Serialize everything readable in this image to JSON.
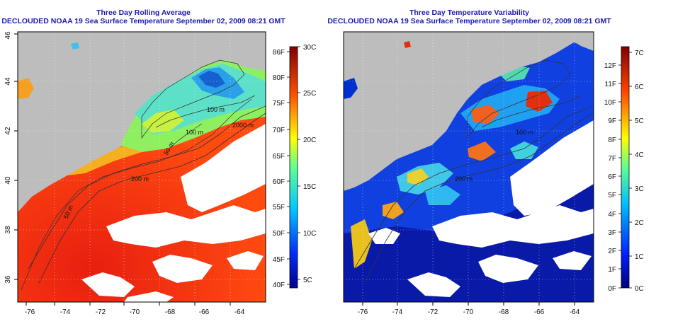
{
  "left_panel": {
    "title_line1": "Three Day Rolling Average",
    "title_line2": "DECLOUDED NOAA 19 Sea Surface Temperature September 02, 2009 08:21 GMT",
    "colorbar_f_labels": [
      "86F",
      "80F",
      "75F",
      "70F",
      "65F",
      "60F",
      "55F",
      "50F",
      "45F",
      "40F"
    ],
    "colorbar_c_labels": [
      "30C",
      "25C",
      "20C",
      "15C",
      "10C",
      "5C"
    ],
    "contour_labels": [
      "100 m",
      "100 m",
      "2000 m",
      "200 m",
      "50 m",
      "50 m"
    ]
  },
  "right_panel": {
    "title_line1": "Three Day Temperature Variability",
    "title_line2": "DECLOUDED NOAA 19 Sea Surface Temperature September 02, 2009 08:21 GMT",
    "colorbar_f_labels": [
      "12F",
      "11F",
      "10F",
      "9F",
      "8F",
      "7F",
      "6F",
      "5F",
      "4F",
      "3F",
      "2F",
      "1F",
      "0F"
    ],
    "colorbar_c_labels": [
      "7C",
      "6C",
      "5C",
      "4C",
      "3C",
      "2C",
      "1C",
      "0C"
    ],
    "contour_labels": [
      "100 m",
      "200 m"
    ]
  },
  "axes": {
    "x_ticks": [
      "-76",
      "-74",
      "-72",
      "-70",
      "-68",
      "-66",
      "-64"
    ],
    "y_ticks": [
      "36",
      "38",
      "40",
      "42",
      "44",
      "46"
    ]
  },
  "colors": {
    "title": "#1b1bb0",
    "land": "#bdbdbd",
    "cloud": "#ffffff"
  }
}
